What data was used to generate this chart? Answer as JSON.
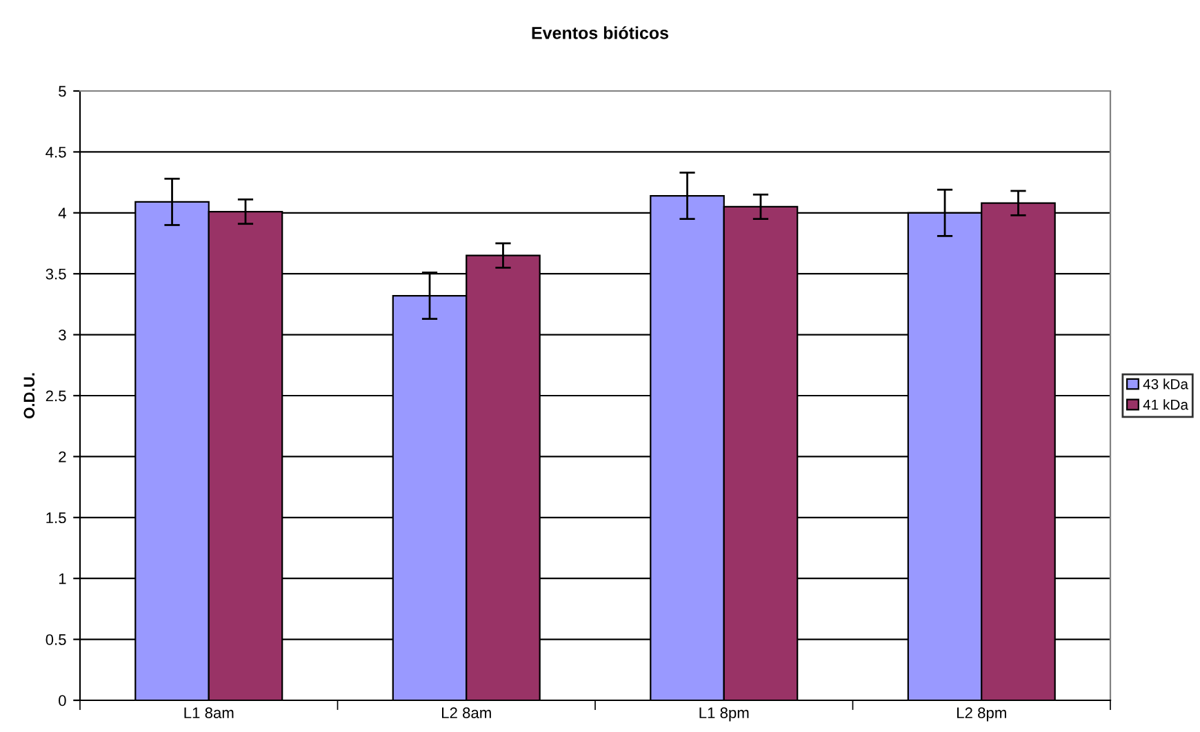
{
  "chart_data": {
    "type": "bar",
    "title": "Eventos bióticos",
    "ylabel": "O.D.U.",
    "categories": [
      "L1 8am",
      "L2 8am",
      "L1 8pm",
      "L2 8pm"
    ],
    "series": [
      {
        "name": "43 kDa",
        "color": "#9999ff",
        "values": [
          4.09,
          3.32,
          4.14,
          4.0
        ],
        "errors": [
          0.19,
          0.19,
          0.19,
          0.19
        ]
      },
      {
        "name": "41 kDa",
        "color": "#993366",
        "values": [
          4.01,
          3.65,
          4.05,
          4.08
        ],
        "errors": [
          0.1,
          0.1,
          0.1,
          0.1
        ]
      }
    ],
    "ylim": [
      0,
      5
    ],
    "yticks": [
      0,
      0.5,
      1,
      1.5,
      2,
      2.5,
      3,
      3.5,
      4,
      4.5,
      5
    ],
    "grid": "y",
    "legend": "right"
  }
}
